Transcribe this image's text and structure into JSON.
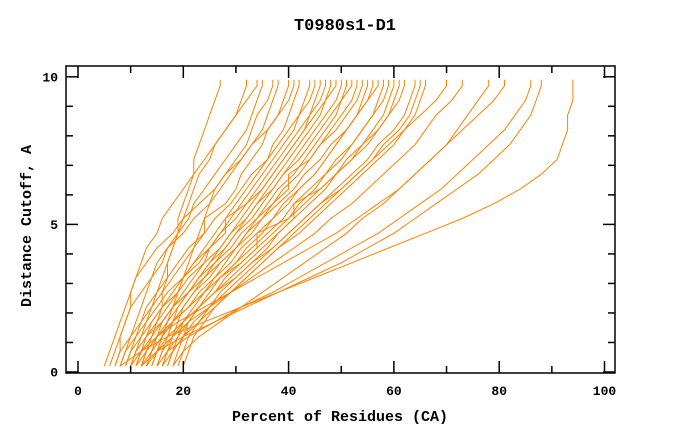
{
  "page": {
    "background": "#ffffff"
  },
  "chart_data": {
    "type": "line",
    "title": "T0980s1-D1",
    "xlabel": "Percent of Residues (CA)",
    "ylabel": "Distance Cutoff, A",
    "xlim": [
      -2.3,
      102
    ],
    "ylim": [
      0,
      10.4
    ],
    "grid": false,
    "legend": "none",
    "x_major_ticks": [
      0,
      20,
      40,
      60,
      80,
      100
    ],
    "x_minor_ticks": [
      10,
      30,
      50,
      70,
      90
    ],
    "y_major_ticks": [
      0,
      5,
      10
    ],
    "y_minor_ticks": [
      1,
      2,
      3,
      4,
      6,
      7,
      8,
      9
    ],
    "axis_color": "#000000",
    "line_color": "#ff8200",
    "sample_y": [
      0.2,
      0.7,
      1.2,
      1.7,
      2.2,
      2.7,
      3.2,
      3.7,
      4.2,
      4.7,
      5.2,
      5.7,
      6.2,
      6.7,
      7.2,
      7.7,
      8.2,
      8.7,
      9.2,
      9.7,
      9.9
    ],
    "series_x": [
      [
        12,
        13,
        14,
        15,
        16,
        16,
        17,
        17,
        18,
        19,
        19,
        20,
        21,
        22,
        22,
        23,
        24,
        25,
        26,
        27,
        27
      ],
      [
        10,
        11,
        12,
        13,
        14,
        15,
        16,
        17,
        18,
        19,
        20,
        21,
        22,
        23,
        25,
        26,
        28,
        30,
        31,
        32,
        32
      ],
      [
        8,
        9,
        10,
        11,
        12,
        13,
        14,
        16,
        17,
        19,
        21,
        22,
        24,
        26,
        28,
        30,
        32,
        33,
        34,
        35,
        35
      ],
      [
        14,
        15,
        16,
        17,
        18,
        19,
        20,
        21,
        22,
        23,
        24,
        25,
        26,
        28,
        30,
        32,
        33,
        34,
        36,
        37,
        37
      ],
      [
        6,
        7,
        8,
        9,
        10,
        12,
        14,
        15,
        17,
        20,
        22,
        25,
        27,
        29,
        31,
        33,
        35,
        36,
        37,
        38,
        38
      ],
      [
        9,
        10,
        11,
        12,
        14,
        16,
        18,
        20,
        22,
        24,
        24,
        28,
        30,
        31,
        33,
        35,
        36,
        38,
        39,
        40,
        40
      ],
      [
        11,
        12,
        13,
        15,
        17,
        19,
        20,
        22,
        24,
        26,
        28,
        30,
        32,
        34,
        36,
        37,
        39,
        40,
        41,
        42,
        42
      ],
      [
        13,
        14,
        15,
        16,
        18,
        20,
        22,
        24,
        25,
        27,
        29,
        31,
        33,
        35,
        37,
        39,
        41,
        42,
        43,
        44,
        44
      ],
      [
        7,
        8,
        10,
        12,
        13,
        15,
        17,
        19,
        21,
        24,
        26,
        29,
        31,
        33,
        36,
        38,
        40,
        42,
        44,
        45,
        45
      ],
      [
        15,
        16,
        17,
        18,
        19,
        21,
        23,
        25,
        27,
        29,
        31,
        33,
        35,
        37,
        39,
        41,
        43,
        44,
        45,
        46,
        46
      ],
      [
        10,
        11,
        13,
        14,
        16,
        18,
        20,
        23,
        25,
        28,
        28,
        32,
        34,
        36,
        38,
        40,
        42,
        44,
        46,
        47,
        47
      ],
      [
        16,
        17,
        18,
        19,
        20,
        22,
        24,
        26,
        28,
        30,
        32,
        34,
        36,
        38,
        40,
        42,
        44,
        46,
        47,
        48,
        48
      ],
      [
        8,
        9,
        11,
        13,
        15,
        17,
        20,
        22,
        25,
        27,
        30,
        32,
        35,
        37,
        39,
        41,
        43,
        45,
        47,
        49,
        49
      ],
      [
        12,
        13,
        15,
        17,
        19,
        21,
        23,
        25,
        28,
        30,
        33,
        35,
        37,
        39,
        41,
        43,
        45,
        47,
        49,
        50,
        50
      ],
      [
        17,
        18,
        19,
        20,
        22,
        24,
        26,
        28,
        30,
        32,
        34,
        36,
        38,
        41,
        43,
        45,
        47,
        49,
        50,
        51,
        51
      ],
      [
        9,
        10,
        12,
        14,
        16,
        19,
        21,
        24,
        27,
        29,
        32,
        34,
        37,
        39,
        42,
        44,
        46,
        48,
        50,
        52,
        52
      ],
      [
        14,
        15,
        16,
        18,
        20,
        22,
        25,
        27,
        30,
        32,
        35,
        37,
        40,
        40,
        44,
        46,
        48,
        50,
        52,
        53,
        53
      ],
      [
        11,
        12,
        14,
        16,
        18,
        21,
        23,
        26,
        29,
        31,
        34,
        37,
        39,
        42,
        44,
        46,
        49,
        51,
        53,
        54,
        54
      ],
      [
        18,
        19,
        20,
        21,
        23,
        25,
        27,
        30,
        32,
        35,
        37,
        40,
        42,
        45,
        47,
        49,
        51,
        53,
        54,
        55,
        55
      ],
      [
        13,
        14,
        16,
        18,
        21,
        23,
        26,
        29,
        31,
        34,
        37,
        39,
        42,
        45,
        47,
        49,
        51,
        53,
        55,
        56,
        56
      ],
      [
        10,
        11,
        13,
        16,
        18,
        21,
        24,
        27,
        30,
        33,
        35,
        38,
        41,
        43,
        46,
        48,
        51,
        53,
        55,
        57,
        57
      ],
      [
        16,
        17,
        19,
        21,
        23,
        26,
        28,
        31,
        34,
        34,
        40,
        42,
        45,
        47,
        50,
        52,
        54,
        56,
        57,
        58,
        58
      ],
      [
        12,
        14,
        16,
        18,
        21,
        24,
        27,
        30,
        33,
        36,
        39,
        41,
        44,
        47,
        49,
        52,
        54,
        56,
        58,
        59,
        59
      ],
      [
        19,
        20,
        21,
        23,
        25,
        27,
        30,
        33,
        36,
        38,
        41,
        41,
        46,
        49,
        51,
        54,
        56,
        58,
        59,
        60,
        60
      ],
      [
        15,
        16,
        18,
        20,
        23,
        26,
        29,
        32,
        35,
        38,
        41,
        44,
        47,
        49,
        52,
        54,
        57,
        59,
        60,
        61,
        61
      ],
      [
        11,
        13,
        15,
        18,
        21,
        24,
        27,
        31,
        34,
        37,
        40,
        43,
        46,
        49,
        52,
        55,
        57,
        59,
        61,
        62,
        62
      ],
      [
        17,
        18,
        20,
        22,
        25,
        28,
        31,
        34,
        37,
        40,
        43,
        46,
        49,
        52,
        55,
        57,
        60,
        62,
        63,
        64,
        64
      ],
      [
        14,
        15,
        17,
        20,
        23,
        26,
        30,
        33,
        37,
        40,
        43,
        46,
        50,
        53,
        56,
        58,
        61,
        63,
        64,
        65,
        65
      ],
      [
        20,
        21,
        22,
        24,
        26,
        29,
        32,
        35,
        38,
        42,
        45,
        48,
        51,
        54,
        57,
        60,
        62,
        64,
        65,
        66,
        66
      ],
      [
        16,
        18,
        20,
        23,
        26,
        29,
        32,
        35,
        38,
        41,
        44,
        47,
        50,
        53,
        56,
        59,
        62,
        65,
        68,
        70,
        70
      ],
      [
        13,
        15,
        18,
        21,
        25,
        29,
        33,
        37,
        41,
        45,
        48,
        52,
        55,
        58,
        61,
        64,
        66,
        68,
        71,
        73,
        73
      ],
      [
        18,
        20,
        23,
        27,
        31,
        35,
        39,
        43,
        47,
        51,
        54,
        58,
        61,
        64,
        67,
        70,
        72,
        74,
        76,
        78,
        78
      ],
      [
        10,
        12,
        15,
        19,
        24,
        29,
        34,
        39,
        44,
        49,
        53,
        57,
        61,
        64,
        67,
        70,
        73,
        76,
        79,
        81,
        81
      ],
      [
        15,
        17,
        21,
        26,
        31,
        37,
        42,
        47,
        52,
        57,
        61,
        65,
        69,
        72,
        75,
        78,
        81,
        83,
        85,
        86,
        86
      ],
      [
        12,
        15,
        20,
        26,
        32,
        38,
        44,
        50,
        55,
        60,
        64,
        68,
        72,
        76,
        79,
        82,
        84,
        86,
        87,
        88,
        88
      ],
      [
        8,
        12,
        17,
        24,
        31,
        38,
        45,
        52,
        59,
        66,
        73,
        79,
        84,
        88,
        91,
        92,
        93,
        93,
        94,
        94,
        94
      ],
      [
        7,
        8,
        8,
        9,
        10,
        10,
        11,
        13,
        15,
        18,
        20,
        23,
        26,
        28,
        31,
        33,
        36,
        38,
        40,
        41,
        41
      ],
      [
        5,
        6,
        7,
        8,
        9,
        10,
        11,
        12,
        13,
        15,
        16,
        18,
        20,
        22,
        24,
        26,
        28,
        30,
        32,
        34,
        34
      ]
    ]
  }
}
